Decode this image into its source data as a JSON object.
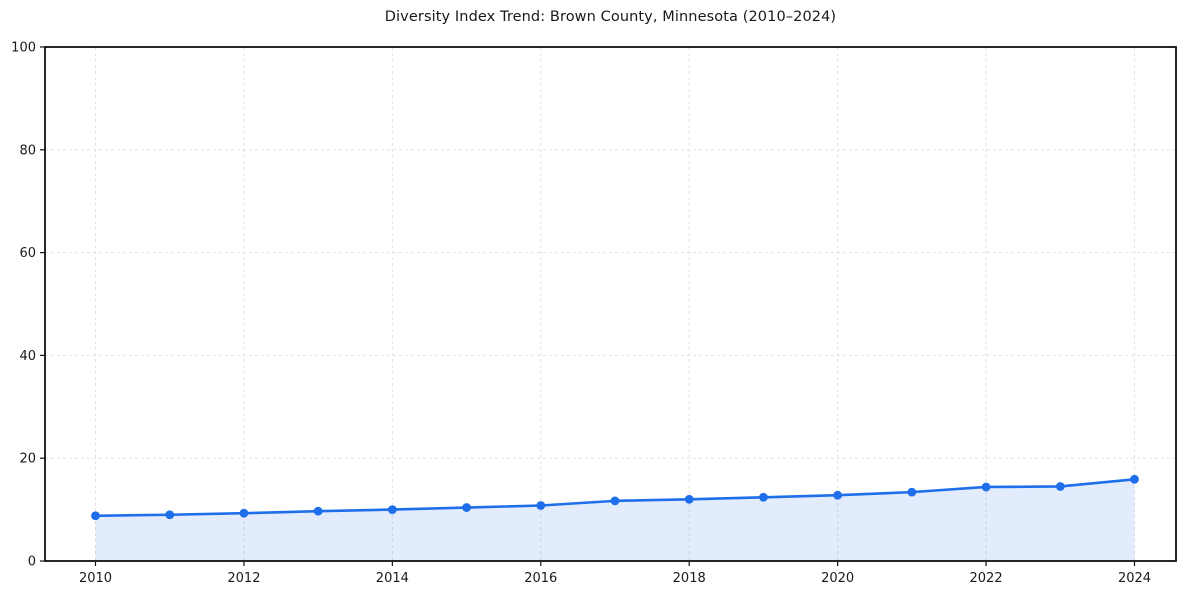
{
  "chart": {
    "title": "Diversity Index Trend: Brown County, Minnesota (2010–2024)"
  },
  "chart_data": {
    "type": "line",
    "title": "Diversity Index Trend: Brown County, Minnesota (2010–2024)",
    "xlabel": "",
    "ylabel": "",
    "x": [
      2010,
      2011,
      2012,
      2013,
      2014,
      2015,
      2016,
      2017,
      2018,
      2019,
      2020,
      2021,
      2022,
      2023,
      2024
    ],
    "series": [
      {
        "name": "Diversity Index",
        "values": [
          8.8,
          9.0,
          9.3,
          9.7,
          10.0,
          10.4,
          10.8,
          11.7,
          12.0,
          12.4,
          12.8,
          13.4,
          14.4,
          14.5,
          15.9
        ]
      }
    ],
    "ylim": [
      0,
      100
    ],
    "yticks": [
      0,
      20,
      40,
      60,
      80,
      100
    ],
    "xticks": [
      2010,
      2012,
      2014,
      2016,
      2018,
      2020,
      2022,
      2024
    ],
    "grid": true,
    "grid_style": "dashed",
    "legend": "none",
    "colors": {
      "line": "#1f6feb",
      "marker": "#1f6feb",
      "fill": "rgba(31,111,235,0.13)",
      "grid": "#e2e2e2",
      "frame": "#111111",
      "tick_label": "#1a1a1a"
    },
    "marker": "circle",
    "marker_radius": 4.4,
    "line_width": 2.6
  }
}
